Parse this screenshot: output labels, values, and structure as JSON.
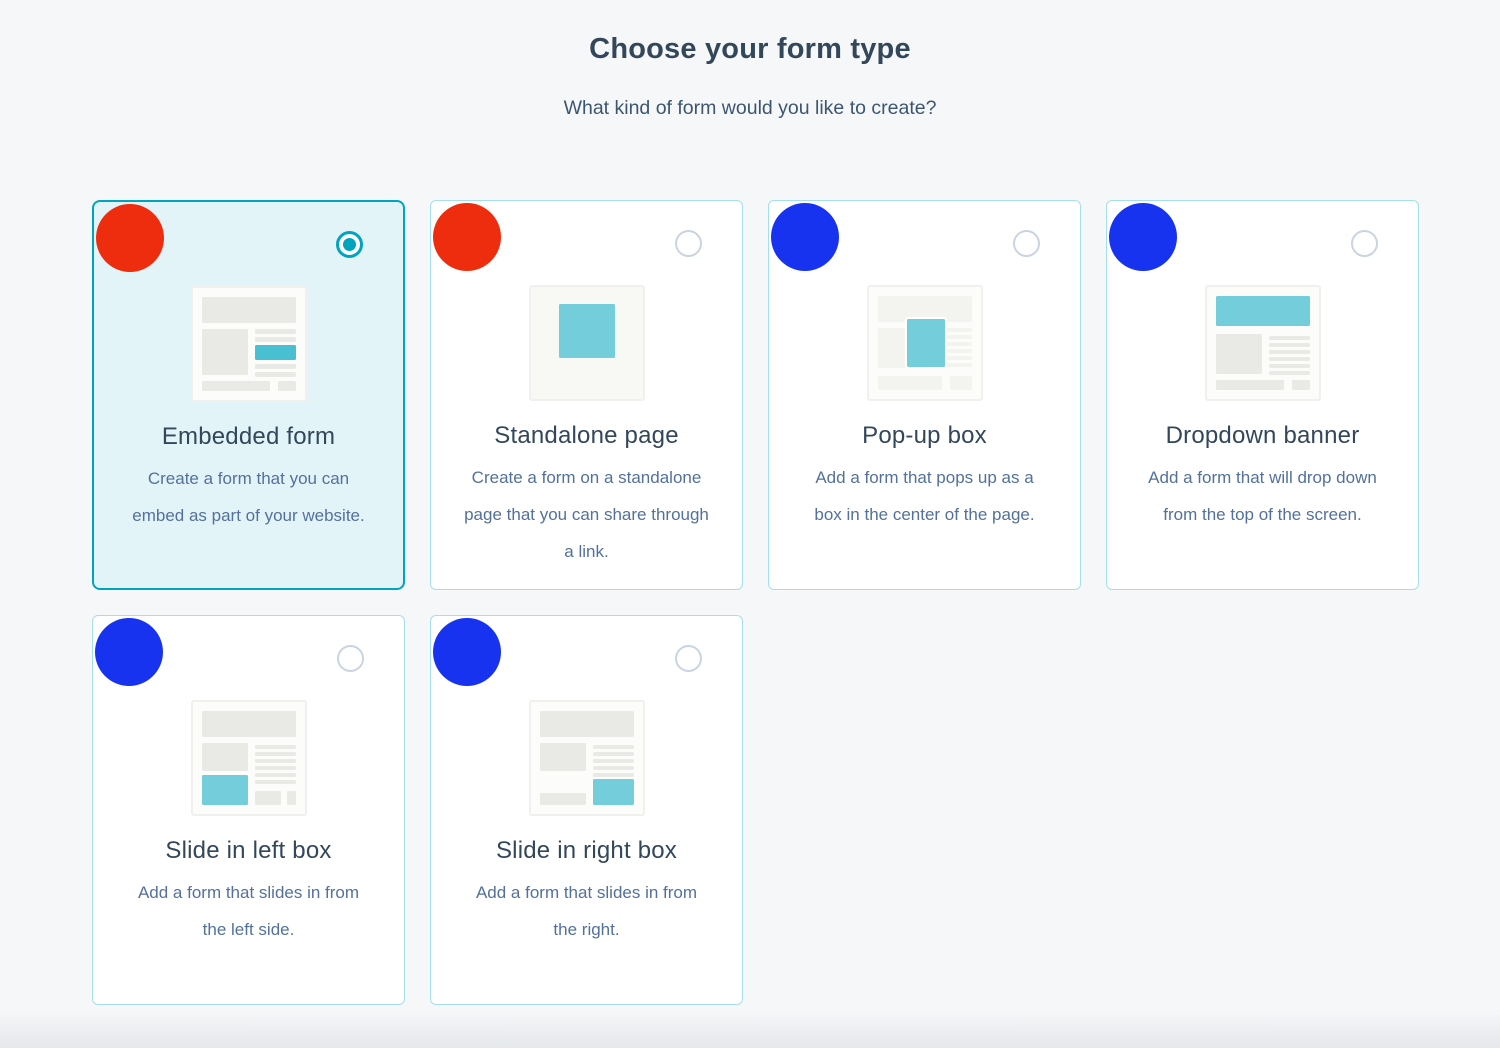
{
  "header": {
    "title": "Choose your form type",
    "subtitle": "What kind of form would you like to create?"
  },
  "cards": [
    {
      "title": "Embedded form",
      "description": "Create a form that you can embed as part of your website.",
      "selected": true,
      "marker_color": "red"
    },
    {
      "title": "Standalone page",
      "description": "Create a form on a standalone page that you can share through a link.",
      "selected": false,
      "marker_color": "red"
    },
    {
      "title": "Pop-up box",
      "description": "Add a form that pops up as a box in the center of the page.",
      "selected": false,
      "marker_color": "blue"
    },
    {
      "title": "Dropdown banner",
      "description": "Add a form that will drop down from the top of the screen.",
      "selected": false,
      "marker_color": "blue"
    },
    {
      "title": "Slide in left box",
      "description": "Add a form that slides in from the left side.",
      "selected": false,
      "marker_color": "blue"
    },
    {
      "title": "Slide in right box",
      "description": "Add a form that slides in from the right.",
      "selected": false,
      "marker_color": "blue"
    }
  ],
  "colors": {
    "accent_teal": "#00a4bd",
    "selected_card_bg": "#e3f4f9",
    "card_border": "#a6dfe9",
    "thumbnail_teal": "#74cdda",
    "title_text": "#33475b",
    "description_text": "#53719b",
    "marker_red": "#ee2d0e",
    "marker_blue": "#1733f0",
    "page_bg": "#f6f7f9"
  }
}
